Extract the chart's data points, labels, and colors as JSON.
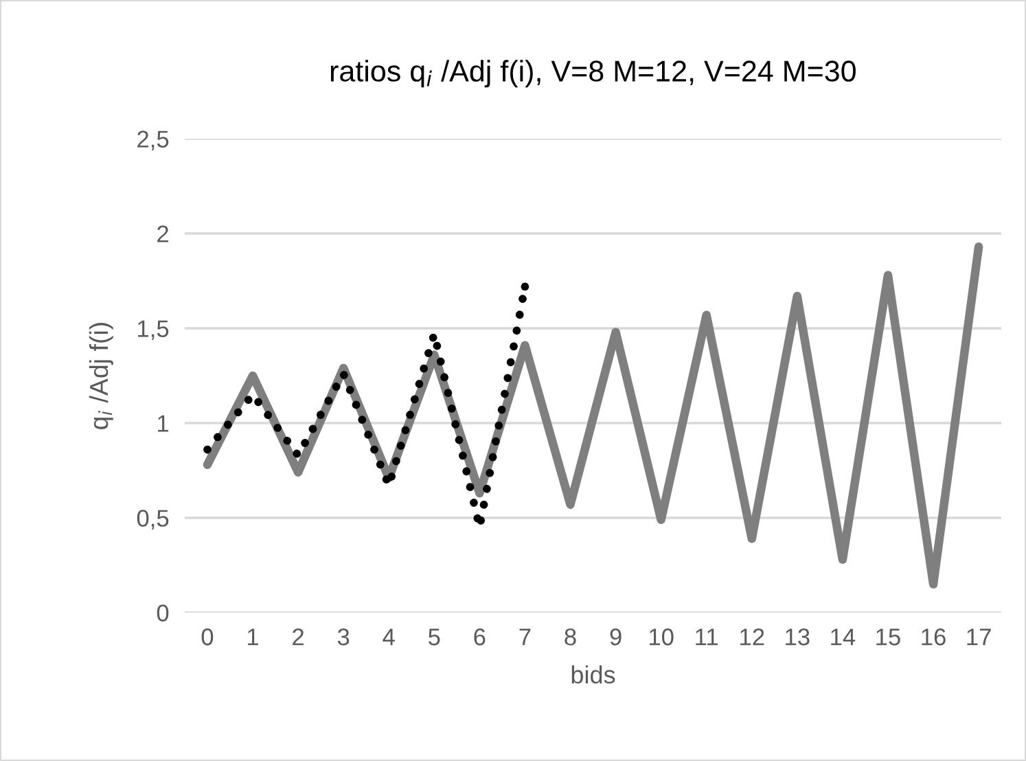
{
  "chart_data": {
    "type": "line",
    "title": "ratios q$_{i}$ /Adj f(i), V=8 M=12, V=24 M=30",
    "xlabel": "bids",
    "ylabel": "q$_{i}$ /Adj f(i)",
    "categories": [
      "0",
      "1",
      "2",
      "3",
      "4",
      "5",
      "6",
      "7",
      "8",
      "9",
      "10",
      "11",
      "12",
      "13",
      "14",
      "15",
      "16",
      "17"
    ],
    "series": [
      {
        "color": "#7f7f7f",
        "line_style": "solid",
        "values": [
          0.78,
          1.25,
          0.74,
          1.29,
          0.71,
          1.36,
          0.63,
          1.41,
          0.57,
          1.48,
          0.49,
          1.57,
          0.39,
          1.67,
          0.28,
          1.78,
          0.15,
          1.93
        ]
      },
      {
        "color": "#000000",
        "line_style": "dotted",
        "values": [
          0.86,
          1.15,
          0.83,
          1.26,
          0.67,
          1.47,
          0.45,
          1.72,
          null,
          null,
          null,
          null,
          null,
          null,
          null,
          null,
          null,
          null
        ]
      }
    ],
    "ylim": [
      0,
      2.5
    ],
    "yticks": [
      0,
      {
        "value": 0.5,
        "label": "0,5"
      },
      1,
      {
        "value": 1.5,
        "label": "1,5"
      },
      2,
      {
        "value": 2.5,
        "label": "2,5"
      }
    ],
    "grid": "y",
    "legend": false,
    "marker": "none"
  }
}
